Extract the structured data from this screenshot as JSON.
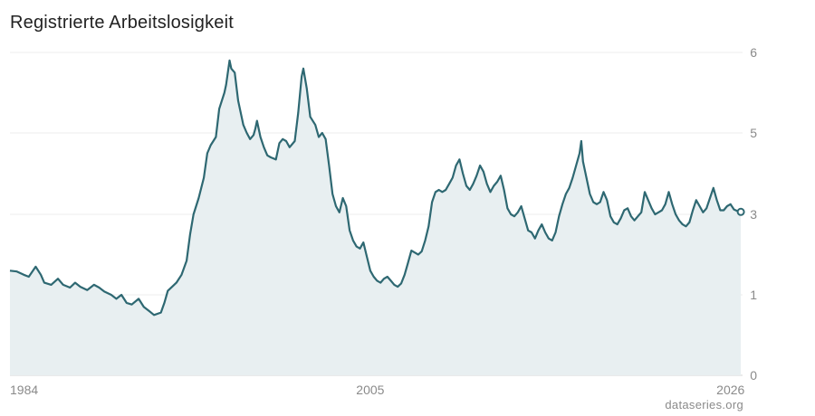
{
  "title": "Registrierte Arbeitslosigkeit",
  "source": "dataseries.org",
  "colors": {
    "line": "#2e6872",
    "area": "#e8eff1",
    "grid": "#ececec",
    "text": "#8a8a8a"
  },
  "chart_data": {
    "type": "area",
    "title": "Registrierte Arbeitslosigkeit",
    "xlabel": "",
    "ylabel": "",
    "x_ticks": [
      {
        "label": "1984",
        "value": 1984
      },
      {
        "label": "2005",
        "value": 2005
      },
      {
        "label": "2026",
        "value": 2026
      }
    ],
    "y_ticks": [
      "0",
      "1",
      "3",
      "5",
      "6"
    ],
    "y_tick_values": [
      0,
      1,
      3,
      5,
      6
    ],
    "xlim": [
      1984,
      2026.7
    ],
    "ylim": [
      0,
      6
    ],
    "y_axis_position": "right",
    "grid": "horizontal",
    "series": [
      {
        "values": [
          [
            1984.0,
            1.6
          ],
          [
            1984.4,
            1.58
          ],
          [
            1984.8,
            1.5
          ],
          [
            1985.1,
            1.45
          ],
          [
            1985.5,
            1.7
          ],
          [
            1985.8,
            1.5
          ],
          [
            1986.0,
            1.3
          ],
          [
            1986.4,
            1.25
          ],
          [
            1986.8,
            1.4
          ],
          [
            1987.1,
            1.25
          ],
          [
            1987.5,
            1.18
          ],
          [
            1987.8,
            1.3
          ],
          [
            1988.1,
            1.2
          ],
          [
            1988.5,
            1.12
          ],
          [
            1988.9,
            1.25
          ],
          [
            1989.2,
            1.18
          ],
          [
            1989.5,
            1.08
          ],
          [
            1989.9,
            1.0
          ],
          [
            1990.2,
            0.95
          ],
          [
            1990.5,
            1.0
          ],
          [
            1990.8,
            0.9
          ],
          [
            1991.1,
            0.88
          ],
          [
            1991.5,
            0.95
          ],
          [
            1991.8,
            0.85
          ],
          [
            1992.1,
            0.8
          ],
          [
            1992.4,
            0.75
          ],
          [
            1992.8,
            0.78
          ],
          [
            1993.0,
            0.9
          ],
          [
            1993.2,
            1.1
          ],
          [
            1993.5,
            1.22
          ],
          [
            1993.7,
            1.3
          ],
          [
            1994.0,
            1.5
          ],
          [
            1994.3,
            1.85
          ],
          [
            1994.5,
            2.5
          ],
          [
            1994.7,
            3.0
          ],
          [
            1995.0,
            3.4
          ],
          [
            1995.3,
            3.9
          ],
          [
            1995.5,
            4.5
          ],
          [
            1995.7,
            4.7
          ],
          [
            1996.0,
            4.9
          ],
          [
            1996.2,
            5.3
          ],
          [
            1996.5,
            5.5
          ],
          [
            1996.6,
            5.6
          ],
          [
            1996.8,
            5.9
          ],
          [
            1996.9,
            5.8
          ],
          [
            1997.1,
            5.75
          ],
          [
            1997.3,
            5.4
          ],
          [
            1997.6,
            5.1
          ],
          [
            1997.8,
            5.0
          ],
          [
            1998.0,
            4.85
          ],
          [
            1998.2,
            4.95
          ],
          [
            1998.3,
            5.05
          ],
          [
            1998.4,
            5.15
          ],
          [
            1998.6,
            4.9
          ],
          [
            1998.8,
            4.65
          ],
          [
            1999.0,
            4.45
          ],
          [
            1999.2,
            4.4
          ],
          [
            1999.5,
            4.35
          ],
          [
            1999.7,
            4.75
          ],
          [
            1999.9,
            4.85
          ],
          [
            2000.1,
            4.8
          ],
          [
            2000.3,
            4.65
          ],
          [
            2000.6,
            4.8
          ],
          [
            2000.8,
            5.25
          ],
          [
            2001.0,
            5.7
          ],
          [
            2001.1,
            5.8
          ],
          [
            2001.3,
            5.55
          ],
          [
            2001.5,
            5.2
          ],
          [
            2001.8,
            5.1
          ],
          [
            2002.0,
            4.9
          ],
          [
            2002.2,
            5.0
          ],
          [
            2002.4,
            4.85
          ],
          [
            2002.6,
            4.2
          ],
          [
            2002.8,
            3.5
          ],
          [
            2003.0,
            3.2
          ],
          [
            2003.2,
            3.05
          ],
          [
            2003.4,
            3.4
          ],
          [
            2003.6,
            3.2
          ],
          [
            2003.8,
            2.6
          ],
          [
            2004.0,
            2.35
          ],
          [
            2004.2,
            2.2
          ],
          [
            2004.4,
            2.15
          ],
          [
            2004.6,
            2.3
          ],
          [
            2004.8,
            1.95
          ],
          [
            2005.0,
            1.6
          ],
          [
            2005.2,
            1.45
          ],
          [
            2005.4,
            1.35
          ],
          [
            2005.6,
            1.3
          ],
          [
            2005.8,
            1.4
          ],
          [
            2006.0,
            1.45
          ],
          [
            2006.2,
            1.35
          ],
          [
            2006.4,
            1.25
          ],
          [
            2006.6,
            1.2
          ],
          [
            2006.8,
            1.28
          ],
          [
            2007.0,
            1.5
          ],
          [
            2007.2,
            1.8
          ],
          [
            2007.4,
            2.1
          ],
          [
            2007.6,
            2.05
          ],
          [
            2007.8,
            2.0
          ],
          [
            2008.0,
            2.08
          ],
          [
            2008.2,
            2.35
          ],
          [
            2008.4,
            2.7
          ],
          [
            2008.6,
            3.3
          ],
          [
            2008.8,
            3.55
          ],
          [
            2009.0,
            3.6
          ],
          [
            2009.2,
            3.55
          ],
          [
            2009.4,
            3.6
          ],
          [
            2009.6,
            3.75
          ],
          [
            2009.8,
            3.9
          ],
          [
            2010.0,
            4.2
          ],
          [
            2010.2,
            4.35
          ],
          [
            2010.4,
            4.0
          ],
          [
            2010.6,
            3.7
          ],
          [
            2010.8,
            3.6
          ],
          [
            2011.0,
            3.75
          ],
          [
            2011.2,
            3.95
          ],
          [
            2011.4,
            4.2
          ],
          [
            2011.6,
            4.05
          ],
          [
            2011.8,
            3.75
          ],
          [
            2012.0,
            3.55
          ],
          [
            2012.2,
            3.7
          ],
          [
            2012.4,
            3.8
          ],
          [
            2012.6,
            3.95
          ],
          [
            2012.8,
            3.6
          ],
          [
            2013.0,
            3.15
          ],
          [
            2013.2,
            3.0
          ],
          [
            2013.4,
            2.95
          ],
          [
            2013.6,
            3.05
          ],
          [
            2013.8,
            3.2
          ],
          [
            2014.0,
            2.9
          ],
          [
            2014.2,
            2.6
          ],
          [
            2014.4,
            2.55
          ],
          [
            2014.6,
            2.4
          ],
          [
            2014.8,
            2.6
          ],
          [
            2015.0,
            2.75
          ],
          [
            2015.2,
            2.55
          ],
          [
            2015.4,
            2.4
          ],
          [
            2015.6,
            2.35
          ],
          [
            2015.8,
            2.55
          ],
          [
            2016.0,
            2.95
          ],
          [
            2016.2,
            3.25
          ],
          [
            2016.4,
            3.5
          ],
          [
            2016.6,
            3.65
          ],
          [
            2016.8,
            3.9
          ],
          [
            2017.0,
            4.2
          ],
          [
            2017.2,
            4.5
          ],
          [
            2017.3,
            4.8
          ],
          [
            2017.4,
            4.3
          ],
          [
            2017.6,
            3.9
          ],
          [
            2017.8,
            3.5
          ],
          [
            2018.0,
            3.3
          ],
          [
            2018.2,
            3.25
          ],
          [
            2018.4,
            3.3
          ],
          [
            2018.6,
            3.55
          ],
          [
            2018.8,
            3.35
          ],
          [
            2019.0,
            2.95
          ],
          [
            2019.2,
            2.8
          ],
          [
            2019.4,
            2.75
          ],
          [
            2019.6,
            2.9
          ],
          [
            2019.8,
            3.1
          ],
          [
            2020.0,
            3.15
          ],
          [
            2020.2,
            2.95
          ],
          [
            2020.4,
            2.85
          ],
          [
            2020.6,
            2.95
          ],
          [
            2020.8,
            3.05
          ],
          [
            2021.0,
            3.55
          ],
          [
            2021.2,
            3.35
          ],
          [
            2021.4,
            3.15
          ],
          [
            2021.6,
            3.0
          ],
          [
            2021.8,
            3.05
          ],
          [
            2022.0,
            3.1
          ],
          [
            2022.2,
            3.25
          ],
          [
            2022.4,
            3.55
          ],
          [
            2022.6,
            3.25
          ],
          [
            2022.8,
            3.0
          ],
          [
            2023.0,
            2.85
          ],
          [
            2023.2,
            2.75
          ],
          [
            2023.4,
            2.7
          ],
          [
            2023.6,
            2.8
          ],
          [
            2023.8,
            3.1
          ],
          [
            2024.0,
            3.35
          ],
          [
            2024.2,
            3.2
          ],
          [
            2024.4,
            3.05
          ],
          [
            2024.6,
            3.15
          ],
          [
            2024.8,
            3.4
          ],
          [
            2025.0,
            3.65
          ],
          [
            2025.2,
            3.35
          ],
          [
            2025.4,
            3.1
          ],
          [
            2025.6,
            3.1
          ],
          [
            2025.8,
            3.2
          ],
          [
            2026.0,
            3.25
          ],
          [
            2026.2,
            3.12
          ],
          [
            2026.4,
            3.08
          ],
          [
            2026.6,
            3.06
          ]
        ]
      }
    ]
  }
}
